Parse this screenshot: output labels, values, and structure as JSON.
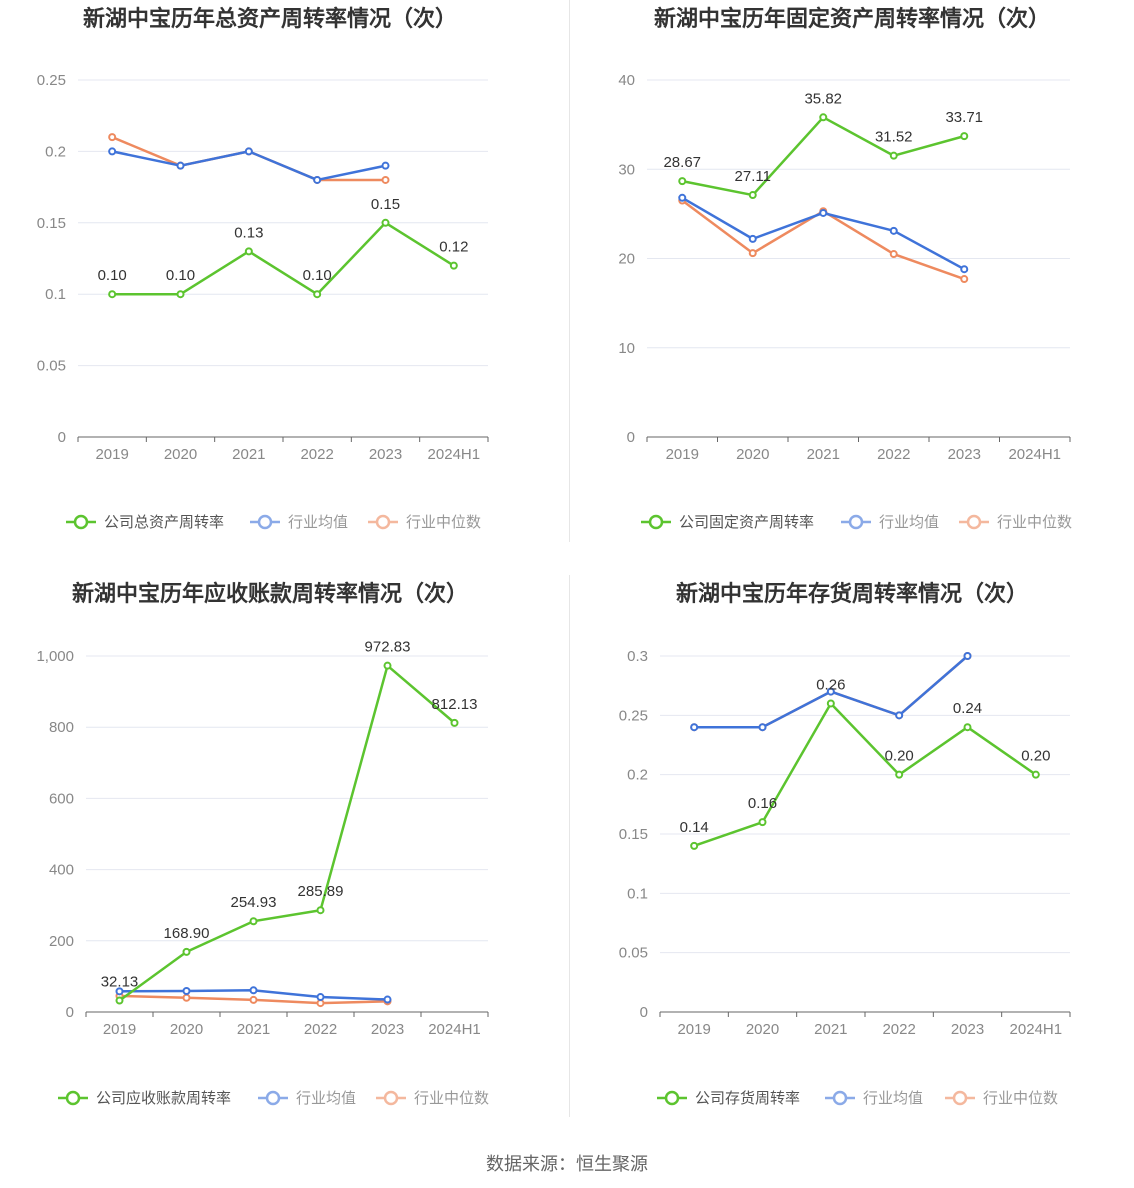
{
  "footer": {
    "source": "数据来源：恒生聚源"
  },
  "colors": {
    "company": "#5cc42f",
    "avg": "#3f73d9",
    "median": "#ee8a5f",
    "grid": "#e4e7f0",
    "axis": "#666666"
  },
  "chart_data": [
    {
      "type": "line",
      "title": "新湖中宝历年总资产周转率情况（次）",
      "categories": [
        "2019",
        "2020",
        "2021",
        "2022",
        "2023",
        "2024H1"
      ],
      "ylim": [
        0,
        0.25
      ],
      "yticks": [
        0,
        0.05,
        0.1,
        0.15,
        0.2,
        0.25
      ],
      "ytick_labels": [
        "0",
        "0.05",
        "0.1",
        "0.15",
        "0.2",
        "0.25"
      ],
      "legend_position": "bottom",
      "series": [
        {
          "name": "公司总资产周转率",
          "key": "company",
          "values": [
            0.1,
            0.1,
            0.13,
            0.1,
            0.15,
            0.12
          ],
          "labels": [
            "0.10",
            "0.10",
            "0.13",
            "0.10",
            "0.15",
            "0.12"
          ]
        },
        {
          "name": "行业均值",
          "key": "avg",
          "values": [
            0.2,
            0.19,
            0.2,
            0.18,
            0.19,
            null
          ]
        },
        {
          "name": "行业中位数",
          "key": "median",
          "values": [
            0.21,
            0.19,
            0.2,
            0.18,
            0.18,
            null
          ]
        }
      ]
    },
    {
      "type": "line",
      "title": "新湖中宝历年固定资产周转率情况（次）",
      "categories": [
        "2019",
        "2020",
        "2021",
        "2022",
        "2023",
        "2024H1"
      ],
      "ylim": [
        0,
        40
      ],
      "yticks": [
        0,
        10,
        20,
        30,
        40
      ],
      "ytick_labels": [
        "0",
        "10",
        "20",
        "30",
        "40"
      ],
      "legend_position": "bottom",
      "series": [
        {
          "name": "公司固定资产周转率",
          "key": "company",
          "values": [
            28.67,
            27.11,
            35.82,
            31.52,
            33.71,
            null
          ],
          "labels": [
            "28.67",
            "27.11",
            "35.82",
            "31.52",
            "33.71",
            ""
          ]
        },
        {
          "name": "行业均值",
          "key": "avg",
          "values": [
            26.8,
            22.2,
            25.1,
            23.1,
            18.8,
            null
          ]
        },
        {
          "name": "行业中位数",
          "key": "median",
          "values": [
            26.5,
            20.6,
            25.3,
            20.5,
            17.7,
            null
          ]
        }
      ]
    },
    {
      "type": "line",
      "title": "新湖中宝历年应收账款周转率情况（次）",
      "categories": [
        "2019",
        "2020",
        "2021",
        "2022",
        "2023",
        "2024H1"
      ],
      "ylim": [
        0,
        1000
      ],
      "yticks": [
        0,
        200,
        400,
        600,
        800,
        1000
      ],
      "ytick_labels": [
        "0",
        "200",
        "400",
        "600",
        "800",
        "1,000"
      ],
      "legend_position": "bottom",
      "series": [
        {
          "name": "公司应收账款周转率",
          "key": "company",
          "values": [
            32.13,
            168.9,
            254.93,
            285.89,
            972.83,
            812.13
          ],
          "labels": [
            "32.13",
            "168.90",
            "254.93",
            "285.89",
            "972.83",
            "812.13"
          ]
        },
        {
          "name": "行业均值",
          "key": "avg",
          "values": [
            58,
            59,
            61,
            42,
            35,
            null
          ]
        },
        {
          "name": "行业中位数",
          "key": "median",
          "values": [
            45,
            40,
            34,
            25,
            30,
            null
          ]
        }
      ]
    },
    {
      "type": "line",
      "title": "新湖中宝历年存货周转率情况（次）",
      "categories": [
        "2019",
        "2020",
        "2021",
        "2022",
        "2023",
        "2024H1"
      ],
      "ylim": [
        0,
        0.3
      ],
      "yticks": [
        0,
        0.05,
        0.1,
        0.15,
        0.2,
        0.25,
        0.3
      ],
      "ytick_labels": [
        "0",
        "0.05",
        "0.1",
        "0.15",
        "0.2",
        "0.25",
        "0.3"
      ],
      "legend_position": "bottom",
      "series": [
        {
          "name": "公司存货周转率",
          "key": "company",
          "values": [
            0.14,
            0.16,
            0.26,
            0.2,
            0.24,
            0.2
          ],
          "labels": [
            "0.14",
            "0.16",
            "0.26",
            "0.20",
            "0.24",
            "0.20"
          ]
        },
        {
          "name": "行业均值",
          "key": "avg",
          "values": [
            0.24,
            0.24,
            0.27,
            0.25,
            0.3,
            null
          ]
        },
        {
          "name": "行业中位数",
          "key": "median",
          "values": [
            0.24,
            0.24,
            0.27,
            0.25,
            0.3,
            null
          ]
        }
      ]
    }
  ]
}
